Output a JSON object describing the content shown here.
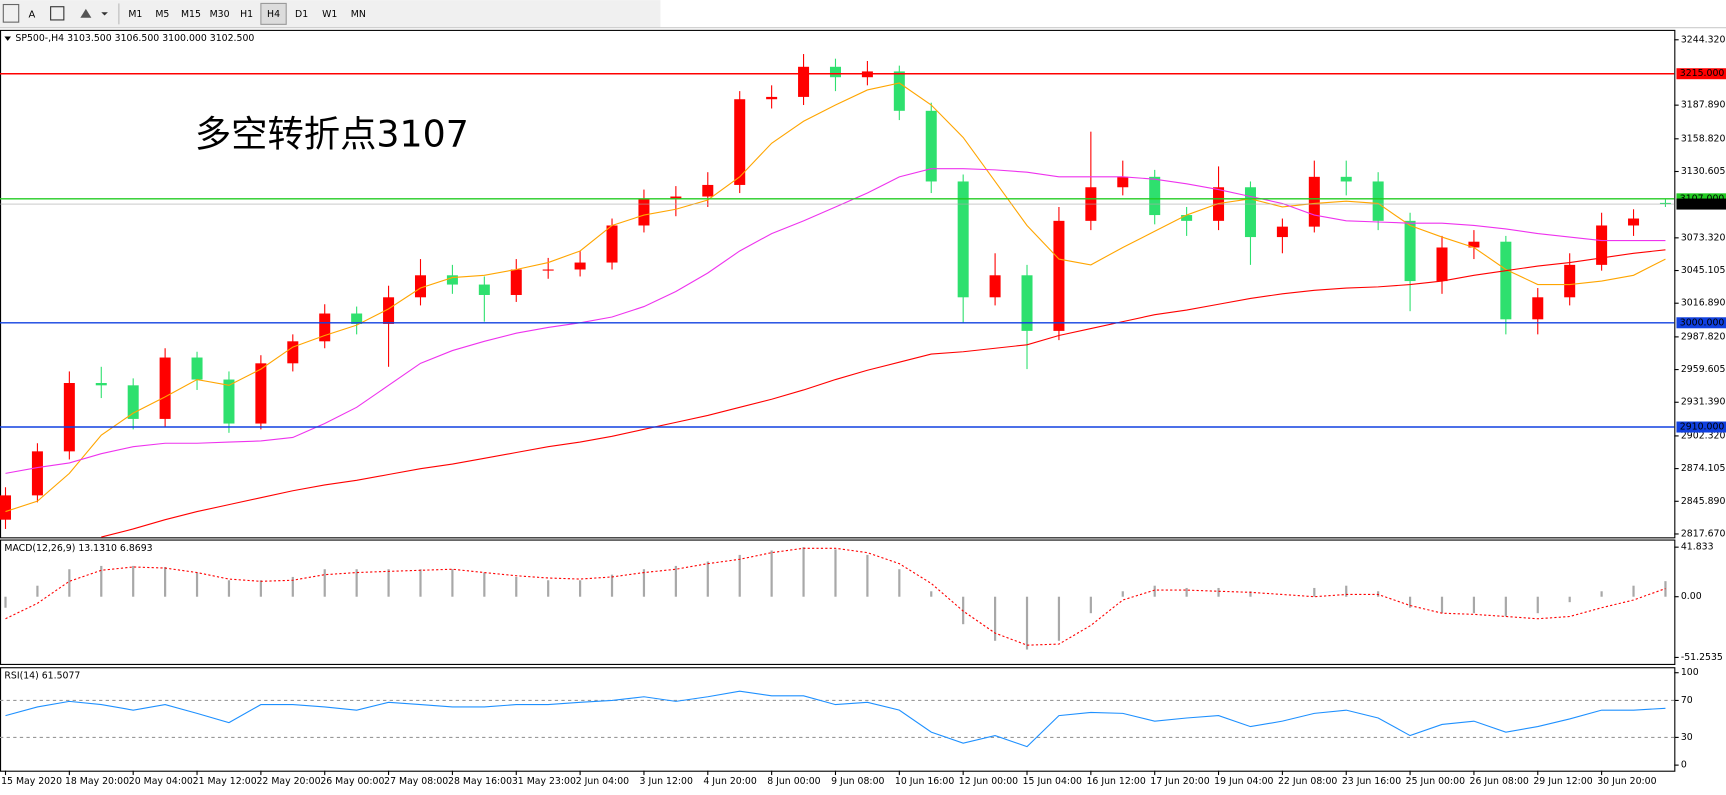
{
  "toolbar": {
    "tools": [
      "A"
    ],
    "timeframes": [
      "M1",
      "M5",
      "M15",
      "M30",
      "H1",
      "H4",
      "D1",
      "W1",
      "MN"
    ],
    "active_timeframe": 5
  },
  "chart_data": [
    {
      "type": "candlestick",
      "title": "SP500-,H4  3103.500 3106.500 3100.000 3102.500",
      "annotation": "多空转折点3107",
      "up_color": "#ff0000",
      "down_color": "#2ee06e",
      "ylim": [
        2814.8,
        3252.9
      ],
      "yticks": [
        {
          "value": 3244.32,
          "label": "3244.320"
        },
        {
          "value": 3187.89,
          "label": "3187.890"
        },
        {
          "value": 3158.82,
          "label": "3158.820"
        },
        {
          "value": 3130.605,
          "label": "3130.605"
        },
        {
          "value": 3073.32,
          "label": "3073.320"
        },
        {
          "value": 3045.105,
          "label": "3045.105"
        },
        {
          "value": 3016.89,
          "label": "3016.890"
        },
        {
          "value": 2987.82,
          "label": "2987.820"
        },
        {
          "value": 2959.605,
          "label": "2959.605"
        },
        {
          "value": 2931.39,
          "label": "2931.390"
        },
        {
          "value": 2902.32,
          "label": "2902.320"
        },
        {
          "value": 2874.105,
          "label": "2874.105"
        },
        {
          "value": 2845.89,
          "label": "2845.890"
        },
        {
          "value": 2817.67,
          "label": "2817.670"
        }
      ],
      "levels": [
        {
          "value": 3215,
          "label": "3215.000",
          "color": "#ff0000"
        },
        {
          "value": 3107,
          "label": "3107.000",
          "color": "#22cc22"
        },
        {
          "value": 3000,
          "label": "3000.000",
          "color": "#1040e0"
        },
        {
          "value": 2910,
          "label": "2910.000",
          "color": "#1040e0"
        }
      ],
      "last_price": {
        "value": 3102.5,
        "label": "3102.500"
      },
      "categories": [
        "15 May 2020",
        null,
        "18 May 20:00",
        null,
        "20 May 04:00",
        null,
        "21 May 12:00",
        null,
        "22 May 20:00",
        null,
        "26 May 00:00",
        null,
        "27 May 08:00",
        null,
        "28 May 16:00",
        null,
        "31 May 23:00",
        null,
        "2 Jun 04:00",
        null,
        "3 Jun 12:00",
        null,
        "4 Jun 20:00",
        null,
        "8 Jun 00:00",
        null,
        "9 Jun 08:00",
        null,
        "10 Jun 16:00",
        null,
        "12 Jun 00:00",
        null,
        "15 Jun 04:00",
        null,
        "16 Jun 12:00",
        null,
        "17 Jun 20:00",
        null,
        "19 Jun 04:00",
        null,
        "22 Jun 08:00",
        null,
        "23 Jun 16:00",
        null,
        "25 Jun 00:00",
        null,
        "26 Jun 08:00",
        null,
        "29 Jun 12:00",
        null,
        "30 Jun 20:00",
        null,
        null
      ],
      "open": [
        2830,
        2851,
        2889,
        2948,
        2946,
        2917,
        2970,
        2951,
        2913,
        2965,
        2984,
        3008,
        2999,
        3022,
        3041,
        3033,
        3024,
        3046,
        3046,
        3052,
        3084,
        3107,
        3109,
        3119,
        3193,
        3195,
        3221,
        3212,
        3217,
        3183,
        3122,
        3022,
        3041,
        2993,
        3088,
        3117,
        3126,
        3093,
        3088,
        3117,
        3074,
        3083,
        3126,
        3122,
        3088,
        3036,
        3065,
        3070,
        3003,
        3022,
        3050,
        3084,
        3103.5
      ],
      "high": [
        2858,
        2896,
        2958,
        2962,
        2952,
        2978,
        2975,
        2958,
        2972,
        2990,
        3016,
        3014,
        3032,
        3055,
        3050,
        3040,
        3055,
        3056,
        3062,
        3090,
        3115,
        3118,
        3130,
        3200,
        3205,
        3232,
        3228,
        3226,
        3222,
        3190,
        3128,
        3060,
        3050,
        3100,
        3165,
        3140,
        3132,
        3100,
        3135,
        3122,
        3090,
        3140,
        3140,
        3130,
        3095,
        3075,
        3080,
        3075,
        3030,
        3060,
        3095,
        3098,
        3106.5
      ],
      "low": [
        2822,
        2845,
        2882,
        2935,
        2908,
        2910,
        2942,
        2905,
        2908,
        2958,
        2978,
        2990,
        2962,
        3015,
        3025,
        3001,
        3018,
        3038,
        3040,
        3046,
        3078,
        3092,
        3100,
        3112,
        3185,
        3188,
        3200,
        3205,
        3175,
        3112,
        3000,
        3015,
        2960,
        2985,
        3080,
        3110,
        3085,
        3075,
        3080,
        3050,
        3060,
        3078,
        3110,
        3080,
        3010,
        3025,
        3055,
        2990,
        2990,
        3015,
        3045,
        3075,
        3100
      ],
      "close": [
        2851,
        2889,
        2948,
        2946,
        2917,
        2970,
        2951,
        2913,
        2965,
        2984,
        3008,
        2999,
        3022,
        3041,
        3033,
        3024,
        3046,
        3046,
        3052,
        3084,
        3107,
        3109,
        3119,
        3193,
        3195,
        3221,
        3212,
        3217,
        3183,
        3122,
        3022,
        3041,
        2993,
        3088,
        3117,
        3126,
        3093,
        3088,
        3117,
        3074,
        3083,
        3126,
        3122,
        3088,
        3036,
        3065,
        3070,
        3003,
        3022,
        3050,
        3084,
        3090,
        3102.5
      ],
      "series": [
        {
          "color": "#ffa500",
          "values": [
            2837,
            2846,
            2870,
            2903,
            2922,
            2936,
            2951,
            2946,
            2960,
            2979,
            2989,
            2998,
            3012,
            3030,
            3039,
            3041,
            3046,
            3052,
            3062,
            3084,
            3093,
            3098,
            3106,
            3126,
            3155,
            3174,
            3188,
            3201,
            3207,
            3188,
            3160,
            3122,
            3084,
            3055,
            3050,
            3065,
            3079,
            3093,
            3103,
            3107,
            3100,
            3103,
            3105,
            3103,
            3084,
            3074,
            3065,
            3046,
            3033,
            3033,
            3036,
            3041,
            3055
          ]
        },
        {
          "color": "#ee33ee",
          "values": [
            2870,
            2875,
            2879,
            2887,
            2893,
            2896,
            2896,
            2897,
            2898,
            2901,
            2913,
            2927,
            2946,
            2965,
            2976,
            2984,
            2991,
            2996,
            3000,
            3005,
            3014,
            3027,
            3043,
            3062,
            3077,
            3088,
            3100,
            3112,
            3126,
            3133,
            3133,
            3132,
            3130,
            3126,
            3126,
            3126,
            3124,
            3120,
            3115,
            3109,
            3103,
            3093,
            3088,
            3087,
            3086,
            3086,
            3084,
            3081,
            3077,
            3074,
            3071,
            3071,
            3071
          ]
        },
        {
          "color": "#ff0000",
          "values": [
            null,
            null,
            null,
            2815,
            2822,
            2830,
            2837,
            2843,
            2849,
            2855,
            2860,
            2864,
            2869,
            2874,
            2878,
            2883,
            2888,
            2893,
            2897,
            2902,
            2908,
            2914,
            2920,
            2927,
            2934,
            2942,
            2951,
            2959,
            2966,
            2973,
            2975,
            2978,
            2981,
            2989,
            2995,
            3001,
            3007,
            3011,
            3016,
            3021,
            3025,
            3028,
            3030,
            3031,
            3033,
            3036,
            3041,
            3045,
            3049,
            3052,
            3056,
            3060,
            3063
          ]
        }
      ]
    },
    {
      "type": "macd",
      "title": "MACD(12,26,9) 13.1310 6.8693",
      "ylim": [
        -56.7,
        48.3
      ],
      "yticks": [
        {
          "value": 41.833,
          "label": "41.833"
        },
        {
          "value": 0,
          "label": "0.00"
        },
        {
          "value": -51.2535,
          "label": "-51.2535"
        }
      ],
      "series": [
        {
          "type": "histogram",
          "color": "#a8a8a8",
          "values": [
            -9.3,
            9.3,
            23.2,
            26,
            26,
            25.1,
            20.4,
            13.9,
            13.9,
            16.7,
            23.2,
            23.2,
            23.2,
            23.2,
            23.2,
            20.4,
            16.7,
            13.9,
            13.9,
            18.6,
            23.2,
            26,
            29.7,
            35.3,
            39,
            41.8,
            40,
            35.3,
            23.2,
            4.6,
            -23.2,
            -37.2,
            -44.6,
            -37.2,
            -13.9,
            4.6,
            9.3,
            7.4,
            7.4,
            4.6,
            0,
            7.4,
            9.3,
            4.6,
            -9.3,
            -13.9,
            -13.9,
            -16.7,
            -13.9,
            -4.6,
            4.6,
            9.3,
            13.131
          ]
        },
        {
          "type": "signal",
          "color": "#ff0000",
          "values": [
            -18.6,
            -5.6,
            13,
            22.3,
            25.1,
            24.2,
            20.4,
            14.9,
            13,
            13.9,
            18.6,
            20.4,
            21.4,
            22.3,
            23.2,
            20.4,
            17.7,
            15.8,
            14.9,
            16.7,
            20.4,
            23.2,
            27.9,
            31.6,
            37.2,
            40.9,
            40.9,
            37.2,
            27.9,
            11.2,
            -12.1,
            -30.7,
            -40.9,
            -40,
            -24.2,
            -2.8,
            5.6,
            5.6,
            4.6,
            3.7,
            1.9,
            0,
            1.9,
            1.9,
            -7.4,
            -13.9,
            -14.9,
            -16.7,
            -18.6,
            -16.7,
            -9.3,
            -2.8,
            6.8693
          ]
        }
      ]
    },
    {
      "type": "line",
      "title": "RSI(14) 61.5077",
      "ylim": [
        -6,
        106
      ],
      "yticks": [
        100,
        70,
        30,
        0
      ],
      "levels": [
        70,
        30
      ],
      "series": [
        {
          "color": "#1e90ff",
          "values": [
            53.6,
            63,
            69,
            65.5,
            59.5,
            65.5,
            56,
            46,
            65.5,
            65.5,
            63,
            59.5,
            68,
            65.5,
            63,
            63,
            65.5,
            65.5,
            68,
            70,
            74,
            69,
            74,
            80,
            75,
            75,
            65.5,
            68,
            59.5,
            35.7,
            23.8,
            32,
            20,
            53.6,
            57,
            56,
            47.6,
            51,
            53.6,
            41.7,
            47.6,
            56,
            59.5,
            51,
            32,
            44,
            47.6,
            35.7,
            41.7,
            50,
            59.5,
            59.5,
            61.5077
          ]
        }
      ]
    }
  ]
}
